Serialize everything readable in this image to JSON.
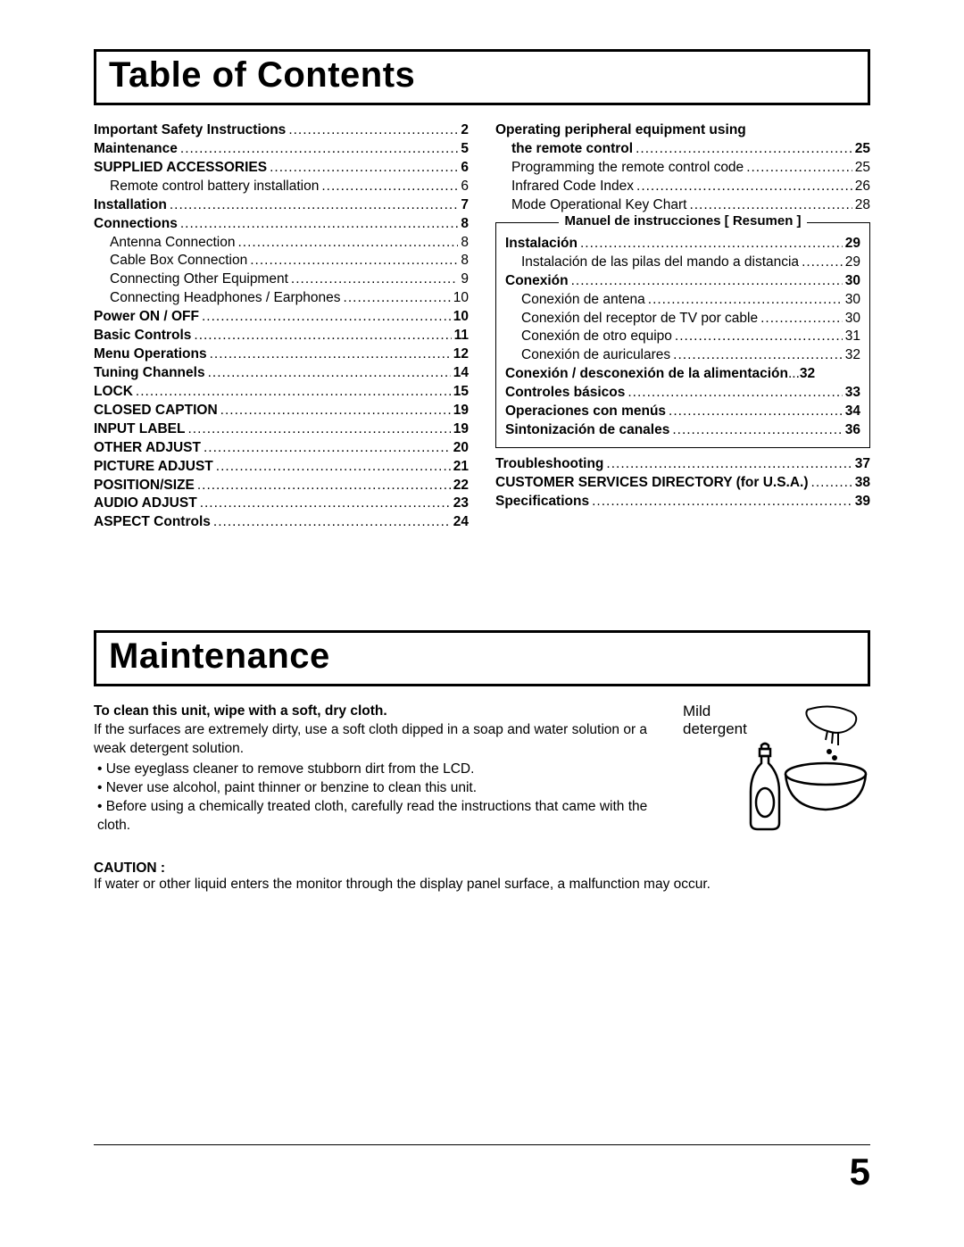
{
  "headings": {
    "toc": "Table of Contents",
    "maintenance": "Maintenance"
  },
  "toc_left": [
    {
      "label": "Important Safety Instructions",
      "page": "2",
      "bold": true,
      "indent": 0
    },
    {
      "label": "Maintenance",
      "page": "5",
      "bold": true,
      "indent": 0
    },
    {
      "label": "SUPPLIED ACCESSORIES",
      "page": "6",
      "bold": true,
      "indent": 0
    },
    {
      "label": "Remote control battery installation",
      "page": "6",
      "bold": false,
      "indent": 1
    },
    {
      "label": "Installation",
      "page": "7",
      "bold": true,
      "indent": 0
    },
    {
      "label": "Connections",
      "page": "8",
      "bold": true,
      "indent": 0
    },
    {
      "label": "Antenna Connection",
      "page": "8",
      "bold": false,
      "indent": 1
    },
    {
      "label": "Cable Box Connection",
      "page": "8",
      "bold": false,
      "indent": 1
    },
    {
      "label": "Connecting Other Equipment",
      "page": "9",
      "bold": false,
      "indent": 1
    },
    {
      "label": "Connecting Headphones / Earphones",
      "page": "10",
      "bold": false,
      "indent": 1
    },
    {
      "label": "Power ON / OFF",
      "page": "10",
      "bold": true,
      "indent": 0
    },
    {
      "label": "Basic Controls",
      "page": "11",
      "bold": true,
      "indent": 0
    },
    {
      "label": "Menu Operations",
      "page": "12",
      "bold": true,
      "indent": 0
    },
    {
      "label": "Tuning Channels",
      "page": "14",
      "bold": true,
      "indent": 0
    },
    {
      "label": "LOCK",
      "page": "15",
      "bold": true,
      "indent": 0
    },
    {
      "label": "CLOSED CAPTION",
      "page": "19",
      "bold": true,
      "indent": 0
    },
    {
      "label": "INPUT LABEL",
      "page": "19",
      "bold": true,
      "indent": 0
    },
    {
      "label": "OTHER ADJUST",
      "page": "20",
      "bold": true,
      "indent": 0
    },
    {
      "label": "PICTURE ADJUST",
      "page": "21",
      "bold": true,
      "indent": 0
    },
    {
      "label": "POSITION/SIZE",
      "page": "22",
      "bold": true,
      "indent": 0
    },
    {
      "label": "AUDIO ADJUST",
      "page": "23",
      "bold": true,
      "indent": 0
    },
    {
      "label": "ASPECT Controls",
      "page": "24",
      "bold": true,
      "indent": 0
    }
  ],
  "toc_right_top": [
    {
      "label": "Operating peripheral equipment using",
      "page": "",
      "bold": true,
      "indent": 0,
      "nodots": true
    },
    {
      "label": "the remote control",
      "page": "25",
      "bold": true,
      "indent": 1
    },
    {
      "label": "Programming the remote control code",
      "page": "25",
      "bold": false,
      "indent": 1
    },
    {
      "label": "Infrared Code Index",
      "page": "26",
      "bold": false,
      "indent": 1
    },
    {
      "label": "Mode Operational Key Chart",
      "page": "28",
      "bold": false,
      "indent": 1
    }
  ],
  "spanish_title": "Manuel de instrucciones  [ Resumen ]",
  "toc_spanish": [
    {
      "label": "Instalación",
      "page": "29",
      "bold": true,
      "indent": 0
    },
    {
      "label": "Instalación de las pilas del mando a distancia",
      "page": "29",
      "bold": false,
      "indent": 1
    },
    {
      "label": "Conexión",
      "page": "30",
      "bold": true,
      "indent": 0
    },
    {
      "label": "Conexión de antena",
      "page": "30",
      "bold": false,
      "indent": 1
    },
    {
      "label": "Conexión del receptor de TV por cable",
      "page": "30",
      "bold": false,
      "indent": 1
    },
    {
      "label": "Conexión de otro equipo",
      "page": "31",
      "bold": false,
      "indent": 1
    },
    {
      "label": "Conexión de auriculares",
      "page": "32",
      "bold": false,
      "indent": 1
    },
    {
      "label": "Conexión / desconexión de la alimentación",
      "page": "32",
      "bold": true,
      "indent": 0,
      "tightdots": true
    },
    {
      "label": "Controles básicos",
      "page": "33",
      "bold": true,
      "indent": 0
    },
    {
      "label": "Operaciones con menús",
      "page": "34",
      "bold": true,
      "indent": 0
    },
    {
      "label": "Sintonización de canales",
      "page": "36",
      "bold": true,
      "indent": 0
    }
  ],
  "toc_right_bottom": [
    {
      "label": "Troubleshooting",
      "page": "37",
      "bold": true,
      "indent": 0
    },
    {
      "label": "CUSTOMER SERVICES DIRECTORY (for U.S.A.)",
      "page": "38",
      "bold": true,
      "indent": 0
    },
    {
      "label": "Specifications",
      "page": "39",
      "bold": true,
      "indent": 0
    }
  ],
  "maintenance": {
    "intro_bold": "To clean this unit, wipe with a soft, dry cloth.",
    "intro_text": "If the surfaces are extremely dirty, use a soft cloth dipped in a soap and water solution or a weak detergent solution.",
    "bullets": [
      "Use eyeglass cleaner to remove stubborn dirt from the LCD.",
      "Never use alcohol, paint thinner or benzine to clean this unit.",
      "Before using a chemically treated cloth, carefully read the instructions that came with the cloth."
    ],
    "img_label_1": "Mild",
    "img_label_2": "detergent",
    "caution_label": "CAUTION :",
    "caution_text": "If water or other liquid enters the monitor through the display panel surface, a malfunction may occur."
  },
  "page_number": "5"
}
